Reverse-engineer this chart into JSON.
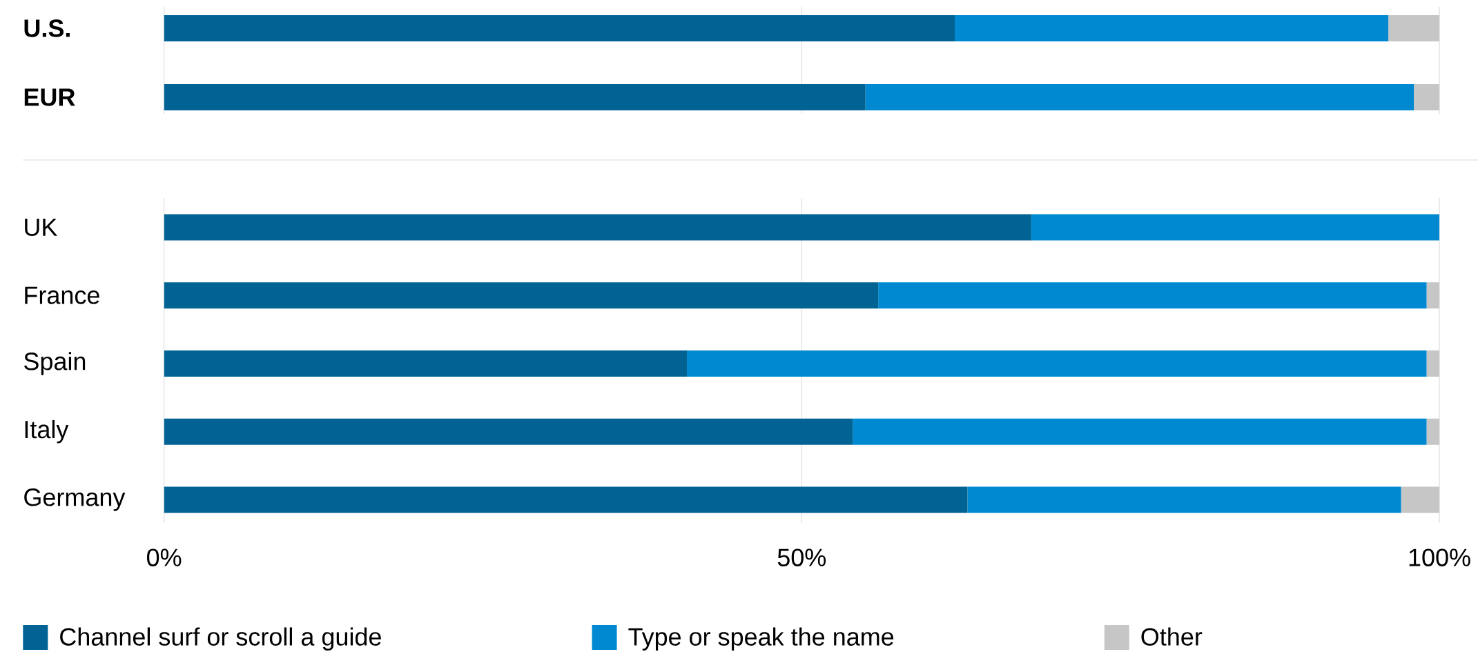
{
  "chart_data": [
    {
      "type": "bar",
      "orientation": "horizontal",
      "stacked": true,
      "categories": [
        "U.S.",
        "EUR"
      ],
      "series": [
        {
          "color": "#006394",
          "values": [
            62,
            55
          ]
        },
        {
          "color": "#0089d0",
          "values": [
            34,
            43
          ]
        },
        {
          "color": "#c6c6c6",
          "values": [
            4,
            2
          ]
        }
      ],
      "xlim": [
        0,
        100
      ],
      "xticks": [
        {
          "value": 0,
          "label": null
        },
        {
          "value": 50,
          "label": null
        },
        {
          "value": 100,
          "label": null
        }
      ],
      "grid": "x",
      "tick_labels": "y"
    },
    {
      "type": "bar",
      "orientation": "horizontal",
      "stacked": true,
      "categories": [
        "UK",
        "France",
        "Spain",
        "Italy",
        "Germany"
      ],
      "series": [
        {
          "name": "Channel surf or scroll a guide",
          "color": "#006394",
          "values": [
            68,
            56,
            41,
            54,
            63
          ]
        },
        {
          "name": "Type or speak the name",
          "color": "#0089d0",
          "values": [
            32,
            43,
            58,
            45,
            34
          ]
        },
        {
          "name": "Other",
          "color": "#c6c6c6",
          "values": [
            0,
            1,
            1,
            1,
            3
          ]
        }
      ],
      "xlim": [
        0,
        100
      ],
      "xticks": [
        {
          "value": 0,
          "label": "0%"
        },
        {
          "value": 50,
          "label": "50%"
        },
        {
          "value": 100,
          "label": "100%"
        }
      ],
      "grid": "x",
      "legend": "bottom"
    }
  ]
}
